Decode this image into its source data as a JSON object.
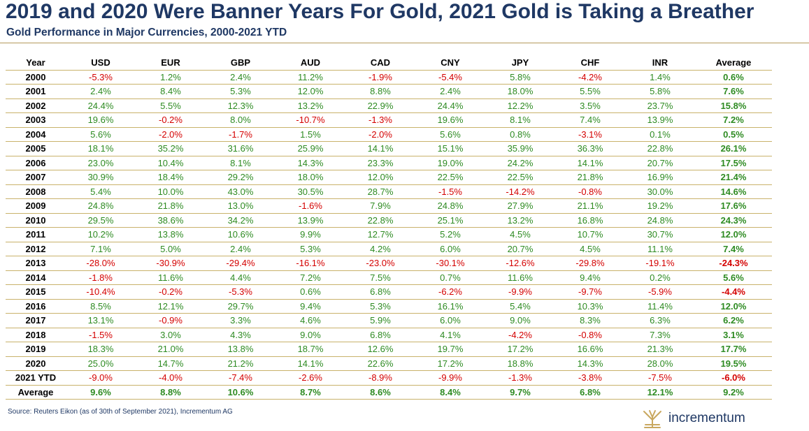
{
  "title": "2019 and 2020 Were Banner Years For Gold, 2021 Gold is Taking a Breather",
  "subtitle": "Gold Performance in Major Currencies, 2000-2021 YTD",
  "source": "Source: Reuters Eikon (as of 30th of September 2021), Incrementum AG",
  "logo": {
    "text": "incrementum",
    "icon": "tree-icon",
    "icon_color": "#c9a860"
  },
  "colors": {
    "title": "#1f3864",
    "positive": "#2e8b22",
    "negative": "#d40000",
    "rule": "#c9b26b"
  },
  "chart_data": {
    "type": "table",
    "columns": [
      "Year",
      "USD",
      "EUR",
      "GBP",
      "AUD",
      "CAD",
      "CNY",
      "JPY",
      "CHF",
      "INR",
      "Average"
    ],
    "rows": [
      [
        "2000",
        "-5.3%",
        "1.2%",
        "2.4%",
        "11.2%",
        "-1.9%",
        "-5.4%",
        "5.8%",
        "-4.2%",
        "1.4%",
        "0.6%"
      ],
      [
        "2001",
        "2.4%",
        "8.4%",
        "5.3%",
        "12.0%",
        "8.8%",
        "2.4%",
        "18.0%",
        "5.5%",
        "5.8%",
        "7.6%"
      ],
      [
        "2002",
        "24.4%",
        "5.5%",
        "12.3%",
        "13.2%",
        "22.9%",
        "24.4%",
        "12.2%",
        "3.5%",
        "23.7%",
        "15.8%"
      ],
      [
        "2003",
        "19.6%",
        "-0.2%",
        "8.0%",
        "-10.7%",
        "-1.3%",
        "19.6%",
        "8.1%",
        "7.4%",
        "13.9%",
        "7.2%"
      ],
      [
        "2004",
        "5.6%",
        "-2.0%",
        "-1.7%",
        "1.5%",
        "-2.0%",
        "5.6%",
        "0.8%",
        "-3.1%",
        "0.1%",
        "0.5%"
      ],
      [
        "2005",
        "18.1%",
        "35.2%",
        "31.6%",
        "25.9%",
        "14.1%",
        "15.1%",
        "35.9%",
        "36.3%",
        "22.8%",
        "26.1%"
      ],
      [
        "2006",
        "23.0%",
        "10.4%",
        "8.1%",
        "14.3%",
        "23.3%",
        "19.0%",
        "24.2%",
        "14.1%",
        "20.7%",
        "17.5%"
      ],
      [
        "2007",
        "30.9%",
        "18.4%",
        "29.2%",
        "18.0%",
        "12.0%",
        "22.5%",
        "22.5%",
        "21.8%",
        "16.9%",
        "21.4%"
      ],
      [
        "2008",
        "5.4%",
        "10.0%",
        "43.0%",
        "30.5%",
        "28.7%",
        "-1.5%",
        "-14.2%",
        "-0.8%",
        "30.0%",
        "14.6%"
      ],
      [
        "2009",
        "24.8%",
        "21.8%",
        "13.0%",
        "-1.6%",
        "7.9%",
        "24.8%",
        "27.9%",
        "21.1%",
        "19.2%",
        "17.6%"
      ],
      [
        "2010",
        "29.5%",
        "38.6%",
        "34.2%",
        "13.9%",
        "22.8%",
        "25.1%",
        "13.2%",
        "16.8%",
        "24.8%",
        "24.3%"
      ],
      [
        "2011",
        "10.2%",
        "13.8%",
        "10.6%",
        "9.9%",
        "12.7%",
        "5.2%",
        "4.5%",
        "10.7%",
        "30.7%",
        "12.0%"
      ],
      [
        "2012",
        "7.1%",
        "5.0%",
        "2.4%",
        "5.3%",
        "4.2%",
        "6.0%",
        "20.7%",
        "4.5%",
        "11.1%",
        "7.4%"
      ],
      [
        "2013",
        "-28.0%",
        "-30.9%",
        "-29.4%",
        "-16.1%",
        "-23.0%",
        "-30.1%",
        "-12.6%",
        "-29.8%",
        "-19.1%",
        "-24.3%"
      ],
      [
        "2014",
        "-1.8%",
        "11.6%",
        "4.4%",
        "7.2%",
        "7.5%",
        "0.7%",
        "11.6%",
        "9.4%",
        "0.2%",
        "5.6%"
      ],
      [
        "2015",
        "-10.4%",
        "-0.2%",
        "-5.3%",
        "0.6%",
        "6.8%",
        "-6.2%",
        "-9.9%",
        "-9.7%",
        "-5.9%",
        "-4.4%"
      ],
      [
        "2016",
        "8.5%",
        "12.1%",
        "29.7%",
        "9.4%",
        "5.3%",
        "16.1%",
        "5.4%",
        "10.3%",
        "11.4%",
        "12.0%"
      ],
      [
        "2017",
        "13.1%",
        "-0.9%",
        "3.3%",
        "4.6%",
        "5.9%",
        "6.0%",
        "9.0%",
        "8.3%",
        "6.3%",
        "6.2%"
      ],
      [
        "2018",
        "-1.5%",
        "3.0%",
        "4.3%",
        "9.0%",
        "6.8%",
        "4.1%",
        "-4.2%",
        "-0.8%",
        "7.3%",
        "3.1%"
      ],
      [
        "2019",
        "18.3%",
        "21.0%",
        "13.8%",
        "18.7%",
        "12.6%",
        "19.7%",
        "17.2%",
        "16.6%",
        "21.3%",
        "17.7%"
      ],
      [
        "2020",
        "25.0%",
        "14.7%",
        "21.2%",
        "14.1%",
        "22.6%",
        "17.2%",
        "18.8%",
        "14.3%",
        "28.0%",
        "19.5%"
      ],
      [
        "2021 YTD",
        "-9.0%",
        "-4.0%",
        "-7.4%",
        "-2.6%",
        "-8.9%",
        "-9.9%",
        "-1.3%",
        "-3.8%",
        "-7.5%",
        "-6.0%"
      ],
      [
        "Average",
        "9.6%",
        "8.8%",
        "10.6%",
        "8.7%",
        "8.6%",
        "8.4%",
        "9.7%",
        "6.8%",
        "12.1%",
        "9.2%"
      ]
    ]
  }
}
